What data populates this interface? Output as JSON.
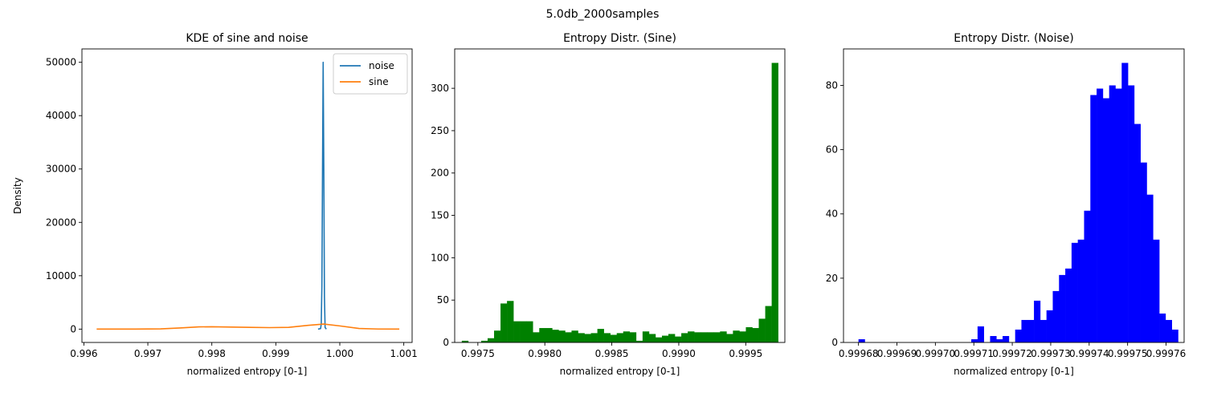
{
  "figure_title": "5.0db_2000samples",
  "chart_data": [
    {
      "type": "line",
      "title": "KDE of sine and noise",
      "xlabel": "normalized entropy [0-1]",
      "ylabel": "Density",
      "xlim": [
        0.99597,
        1.00113
      ],
      "ylim": [
        -2500,
        52500
      ],
      "xticks": [
        0.996,
        0.997,
        0.998,
        0.999,
        1.0,
        1.001
      ],
      "xtick_labels": [
        "0.996",
        "0.997",
        "0.998",
        "0.999",
        "1.000",
        "1.001"
      ],
      "yticks": [
        0,
        10000,
        20000,
        30000,
        40000,
        50000
      ],
      "ytick_labels": [
        "0",
        "10000",
        "20000",
        "30000",
        "40000",
        "50000"
      ],
      "legend_position": "top-right",
      "grid": false,
      "series": [
        {
          "name": "noise",
          "color": "#1f77b4",
          "x": [
            0.99966,
            0.9997,
            0.99971,
            0.99972,
            0.99973,
            0.99974,
            0.99975,
            0.99976,
            0.99977,
            0.99979
          ],
          "y": [
            0,
            100,
            1000,
            8000,
            30000,
            50000,
            30000,
            6000,
            300,
            0
          ]
        },
        {
          "name": "sine",
          "color": "#ff7f0e",
          "x": [
            0.9962,
            0.9968,
            0.9972,
            0.9975,
            0.9978,
            0.998,
            0.9983,
            0.9986,
            0.9989,
            0.9992,
            0.9995,
            0.99975,
            1.0,
            1.0003,
            1.0006,
            1.00093
          ],
          "y": [
            0,
            10,
            50,
            220,
            420,
            440,
            380,
            320,
            280,
            320,
            700,
            950,
            600,
            120,
            15,
            0
          ]
        }
      ]
    },
    {
      "type": "bar",
      "title": "Entropy Distr. (Sine)",
      "xlabel": "normalized entropy [0-1]",
      "ylabel": "",
      "color": "#008000",
      "bin_start": 0.99738,
      "bin_width": 4.82e-05,
      "values": [
        2,
        0,
        0,
        2,
        5,
        14,
        46,
        49,
        25,
        25,
        25,
        12,
        17,
        17,
        15,
        14,
        12,
        14,
        11,
        10,
        11,
        16,
        11,
        9,
        11,
        13,
        12,
        2,
        13,
        10,
        6,
        8,
        10,
        7,
        11,
        13,
        12,
        12,
        12,
        12,
        13,
        10,
        14,
        13,
        18,
        17,
        28,
        43,
        330
      ],
      "xlim": [
        0.997327,
        0.999792
      ],
      "ylim": [
        0,
        346.5
      ],
      "xticks": [
        0.9975,
        0.998,
        0.9985,
        0.999,
        0.9995
      ],
      "xtick_labels": [
        "0.9975",
        "0.9980",
        "0.9985",
        "0.9990",
        "0.9995"
      ],
      "yticks": [
        0,
        50,
        100,
        150,
        200,
        250,
        300
      ],
      "ytick_labels": [
        "0",
        "50",
        "100",
        "150",
        "200",
        "250",
        "300"
      ],
      "grid": false
    },
    {
      "type": "bar",
      "title": "Entropy Distr. (Noise)",
      "xlabel": "normalized entropy [0-1]",
      "ylabel": "",
      "color": "#0000ff",
      "bin_start": 0.99968,
      "bin_width": 1.63e-06,
      "values": [
        1,
        0,
        0,
        0,
        0,
        0,
        0,
        0,
        0,
        0,
        0,
        0,
        0,
        0,
        0,
        0,
        0,
        0,
        1,
        5,
        0,
        2,
        1,
        2,
        0,
        4,
        7,
        7,
        13,
        7,
        10,
        16,
        21,
        23,
        31,
        32,
        41,
        77,
        79,
        76,
        80,
        79,
        87,
        80,
        68,
        56,
        46,
        32,
        9,
        7,
        4
      ],
      "xlim": [
        0.9996761,
        0.9997647
      ],
      "ylim": [
        0,
        91.35
      ],
      "xticks": [
        0.99968,
        0.99969,
        0.9997,
        0.99971,
        0.99972,
        0.99973,
        0.99974,
        0.99975,
        0.99976
      ],
      "xtick_labels": [
        "0.99968",
        "0.99969",
        "0.99970",
        "0.99971",
        "0.99972",
        "0.99973",
        "0.99974",
        "0.99975",
        "0.99976"
      ],
      "yticks": [
        0,
        20,
        40,
        60,
        80
      ],
      "ytick_labels": [
        "0",
        "20",
        "40",
        "60",
        "80"
      ],
      "grid": false
    }
  ]
}
